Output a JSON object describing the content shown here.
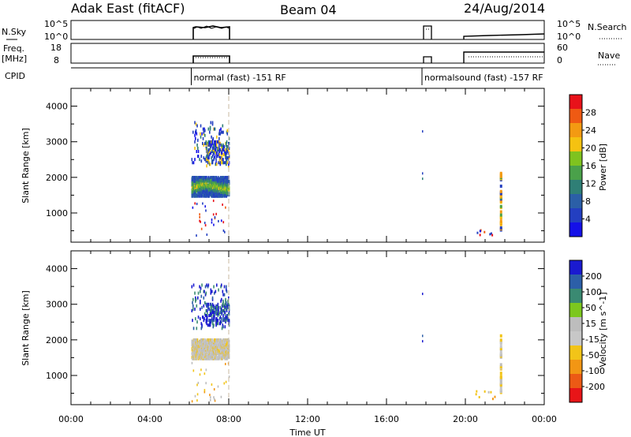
{
  "header": {
    "station": "Adak East (fitACF)",
    "beam": "Beam 04",
    "date": "24/Aug/2014"
  },
  "top_strip": {
    "nsky_label": "N.Sky",
    "nsky_ticks": [
      "10^5",
      "10^0"
    ],
    "nsearch_label": "N.Search",
    "nsearch_ticks": [
      "10^5",
      "10^0"
    ],
    "freq_label_1": "Freq.",
    "freq_label_2": "[MHz]",
    "freq_ticks": [
      "18",
      "8"
    ],
    "nave_label": "Nave",
    "nave_ticks": [
      "60",
      "0"
    ],
    "cpid_label": "CPID",
    "cpid_segments": [
      {
        "start_hour": 6.1,
        "label": "normal (fast) -151 RF"
      },
      {
        "start_hour": 17.8,
        "label": "normalsound (fast) -157 RF"
      }
    ]
  },
  "power_colorbar": {
    "label": "Power [dB]",
    "ticks": [
      "28",
      "24",
      "20",
      "16",
      "12",
      "8",
      "4"
    ],
    "colors": [
      "#e8121a",
      "#ef5a13",
      "#f39a12",
      "#f5c211",
      "#7fc31f",
      "#4aa14a",
      "#2f7f76",
      "#2b5fa7",
      "#233fc1",
      "#1410e8"
    ]
  },
  "velocity_colorbar": {
    "label": "Velocity [m s^-1]",
    "ticks": [
      "200",
      "100",
      "50",
      "15",
      "-15",
      "-50",
      "-100",
      "-200"
    ],
    "colors": [
      "#1a1ad0",
      "#2c5fa8",
      "#3a8a72",
      "#7cc71e",
      "#bdbdbd",
      "#c7c7c7",
      "#f2c418",
      "#f29614",
      "#ec5a15",
      "#e81518"
    ]
  },
  "chart_data": [
    {
      "type": "heatmap",
      "title": "Adak East (fitACF)",
      "ylabel": "Slant Range [km]",
      "ylim": [
        180,
        4500
      ],
      "yticks": [
        1000,
        2000,
        3000,
        4000
      ],
      "xlim": [
        0,
        24
      ],
      "xticks": [
        "00:00",
        "04:00",
        "08:00",
        "12:00",
        "16:00",
        "20:00",
        "00:00"
      ],
      "colorbar": "Power [dB]",
      "regions": [
        {
          "x": [
            6.1,
            8.0
          ],
          "y": [
            1450,
            2000
          ],
          "value": "green/yellow core"
        },
        {
          "x": [
            6.1,
            8.0
          ],
          "y": [
            2300,
            3550
          ],
          "value": "blue patches"
        },
        {
          "x": [
            21.7,
            21.9
          ],
          "y": [
            500,
            2100
          ],
          "value": "mixed"
        }
      ]
    },
    {
      "type": "heatmap",
      "ylabel": "Slant Range [km]",
      "xlabel": "Time UT",
      "ylim": [
        180,
        4500
      ],
      "yticks": [
        1000,
        2000,
        3000,
        4000
      ],
      "xlim": [
        0,
        24
      ],
      "xticks": [
        "00:00",
        "04:00",
        "08:00",
        "12:00",
        "16:00",
        "20:00",
        "00:00"
      ],
      "colorbar": "Velocity [m s^-1]",
      "regions": [
        {
          "x": [
            6.1,
            8.0
          ],
          "y": [
            1450,
            2000
          ],
          "value": "near zero (grey)"
        },
        {
          "x": [
            6.1,
            8.0
          ],
          "y": [
            2300,
            3550
          ],
          "value": "positive (blue)"
        }
      ]
    }
  ],
  "x_axis": {
    "label": "Time UT",
    "ticks": [
      "00:00",
      "04:00",
      "08:00",
      "12:00",
      "16:00",
      "20:00",
      "00:00"
    ]
  }
}
